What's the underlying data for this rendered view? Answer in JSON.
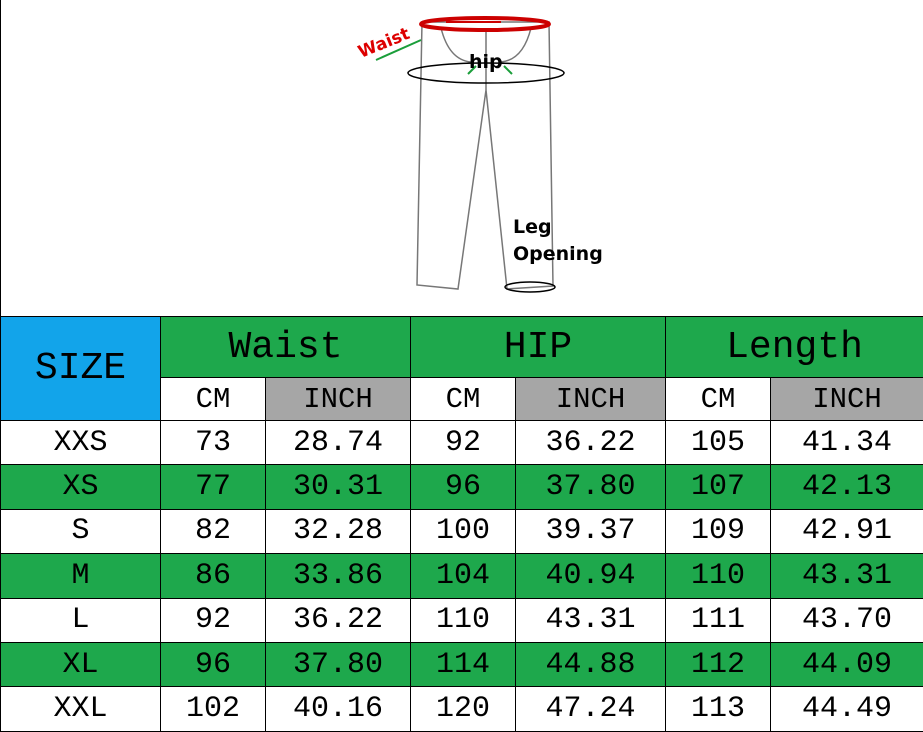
{
  "diagram": {
    "labels": {
      "waist": "Waist",
      "hip": "hip",
      "leg_opening": [
        "Leg",
        "Opening"
      ]
    }
  },
  "table": {
    "header": {
      "size": "SIZE",
      "groups": [
        "Waist",
        "HIP",
        "Length"
      ],
      "units": [
        "CM",
        "INCH",
        "CM",
        "INCH",
        "CM",
        "INCH"
      ]
    },
    "rows": [
      [
        "XXS",
        "73",
        "28.74",
        "92",
        "36.22",
        "105",
        "41.34"
      ],
      [
        "XS",
        "77",
        "30.31",
        "96",
        "37.80",
        "107",
        "42.13"
      ],
      [
        "S",
        "82",
        "32.28",
        "100",
        "39.37",
        "109",
        "42.91"
      ],
      [
        "M",
        "86",
        "33.86",
        "104",
        "40.94",
        "110",
        "43.31"
      ],
      [
        "L",
        "92",
        "36.22",
        "110",
        "43.31",
        "111",
        "43.70"
      ],
      [
        "XL",
        "96",
        "37.80",
        "114",
        "44.88",
        "112",
        "44.09"
      ],
      [
        "XXL",
        "102",
        "40.16",
        "120",
        "47.24",
        "113",
        "44.49"
      ]
    ]
  }
}
